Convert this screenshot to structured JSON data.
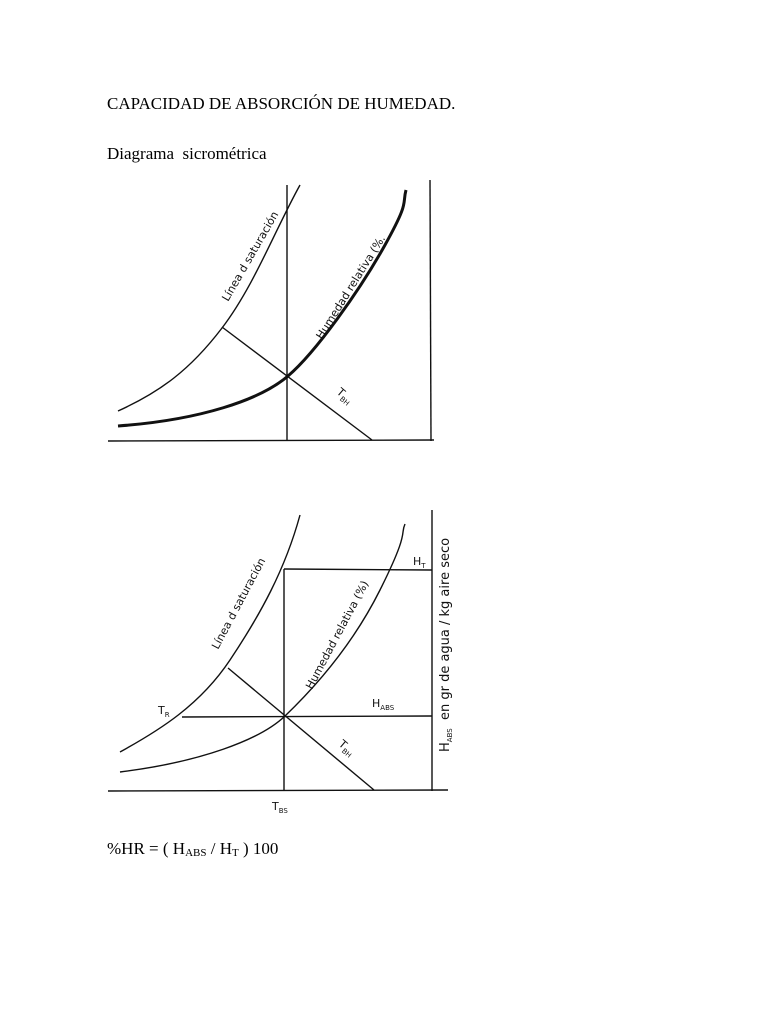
{
  "header": {
    "title": "CAPACIDAD DE ABSORCIÓN DE HUMEDAD.",
    "subtitle": "Diagrama  sicrométrica"
  },
  "diagram1": {
    "saturation_label": "Línea d saturación",
    "humidity_label": "Humedad relativa (%.",
    "wet_bulb": {
      "main": "T",
      "sub": "BH"
    }
  },
  "diagram2": {
    "saturation_label": "Línea d saturación",
    "humidity_label": "Humedad relativa (%)",
    "h_t": {
      "main": "H",
      "sub": "T"
    },
    "t_r": {
      "main": "T",
      "sub": "R"
    },
    "h_abs": {
      "main": "H",
      "sub": "ABS"
    },
    "wet_bulb": {
      "main": "T",
      "sub": "BH"
    },
    "t_bs": {
      "main": "T",
      "sub": "BS"
    },
    "axis_label": {
      "main": "H",
      "sub": "ABS",
      "rest": "  en gr de agua / kg aire seco"
    }
  },
  "formula": {
    "parts": [
      "%HR = ( H",
      "ABS",
      " / H",
      "T",
      " ) 100"
    ]
  }
}
